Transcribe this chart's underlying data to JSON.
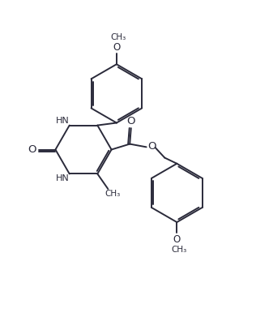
{
  "bg_color": "#ffffff",
  "line_color": "#2a2a3a",
  "line_width": 1.4,
  "figsize": [
    3.16,
    3.91
  ],
  "dpi": 100,
  "xlim": [
    0,
    10
  ],
  "ylim": [
    0,
    12.4
  ]
}
